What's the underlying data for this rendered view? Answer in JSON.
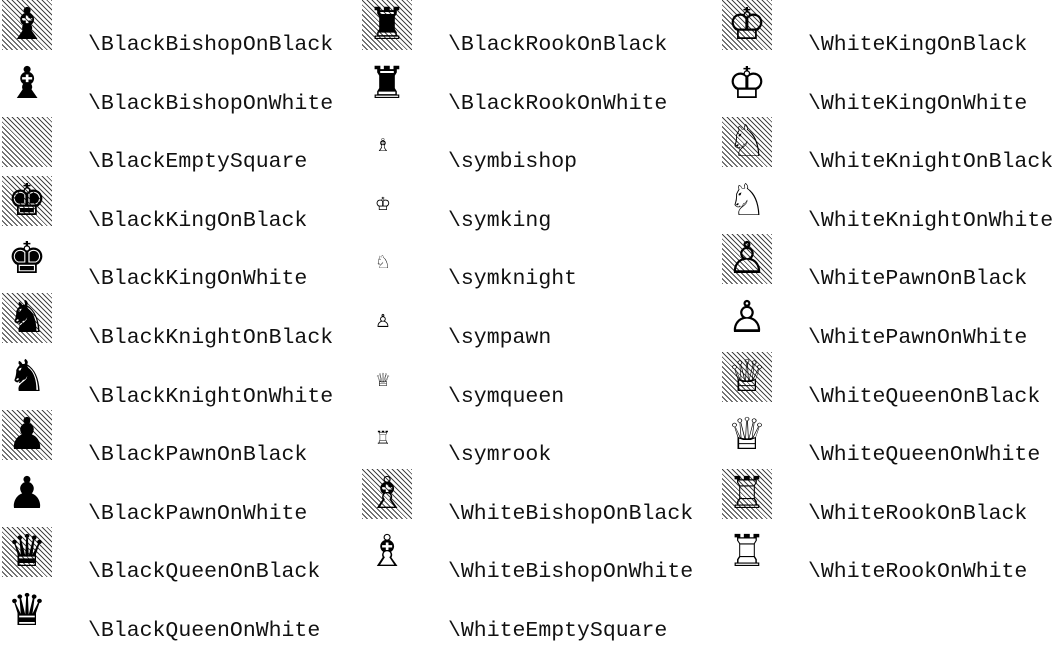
{
  "columns": [
    [
      "\\BlackBishopOnBlack",
      "\\BlackBishopOnWhite",
      "\\BlackEmptySquare",
      "\\BlackKingOnBlack",
      "\\BlackKingOnWhite",
      "\\BlackKnightOnBlack",
      "\\BlackKnightOnWhite",
      "\\BlackPawnOnBlack",
      "\\BlackPawnOnWhite",
      "\\BlackQueenOnBlack",
      "\\BlackQueenOnWhite"
    ],
    [
      "\\BlackRookOnBlack",
      "\\BlackRookOnWhite",
      "\\symbishop",
      "\\symking",
      "\\symknight",
      "\\sympawn",
      "\\symqueen",
      "\\symrook",
      "\\WhiteBishopOnBlack",
      "\\WhiteBishopOnWhite",
      "\\WhiteEmptySquare"
    ],
    [
      "\\WhiteKingOnBlack",
      "\\WhiteKingOnWhite",
      "\\WhiteKnightOnBlack",
      "\\WhiteKnightOnWhite",
      "\\WhitePawnOnBlack",
      "\\WhitePawnOnWhite",
      "\\WhiteQueenOnBlack",
      "\\WhiteQueenOnWhite",
      "\\WhiteRookOnBlack",
      "\\WhiteRookOnWhite"
    ]
  ]
}
